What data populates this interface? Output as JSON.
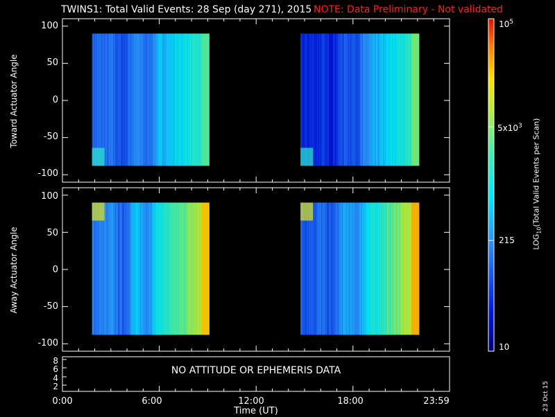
{
  "header": {
    "title": "TWINS1: Total Valid Events: 28 Sep (day 271), 2015",
    "note": "NOTE: Data Preliminary - Not validated",
    "note_color": "#ff2020"
  },
  "chart_data": [
    {
      "type": "heatmap",
      "panel": "top",
      "ylabel": "Toward Actuator Angle",
      "xlim": [
        "0:00",
        "23:59"
      ],
      "ylim": [
        -110,
        110
      ],
      "yticks": [
        "100",
        "50",
        "0",
        "-50",
        "-100"
      ],
      "data_ylim": [
        -88,
        90
      ],
      "blocks": [
        {
          "start": "1:50",
          "end": "9:05",
          "level": "blue-to-cyan, rising toward later times; green at the end"
        },
        {
          "start": "14:45",
          "end": "22:05",
          "level": "deep blue early, rising to cyan/green at the end"
        }
      ]
    },
    {
      "type": "heatmap",
      "panel": "middle",
      "ylabel": "Away Actuator Angle",
      "xlim": [
        "0:00",
        "23:59"
      ],
      "ylim": [
        -110,
        110
      ],
      "yticks": [
        "100",
        "50",
        "0",
        "-50",
        "-100"
      ],
      "data_ylim": [
        -88,
        90
      ],
      "blocks": [
        {
          "start": "1:50",
          "end": "9:05",
          "level": "blue-to-cyan, rising to yellow at the end"
        },
        {
          "start": "14:45",
          "end": "22:05",
          "level": "blue early, rising to yellow at the end"
        }
      ]
    }
  ],
  "attitude_panel": {
    "yticks": [
      "8",
      "6",
      "4",
      "2"
    ],
    "message": "NO ATTITUDE OR EPHEMERIS DATA"
  },
  "xaxis": {
    "xlabel": "Time (UT)",
    "ticks": [
      "0:00",
      "6:00",
      "12:00",
      "18:00",
      "23:59"
    ]
  },
  "colorbar": {
    "label": "LOG10(Total Valid Events per Scan)",
    "ticks": [
      {
        "value": 100000,
        "label": "10^5"
      },
      {
        "value": 5000,
        "label": "5x10^3"
      },
      {
        "value": 215,
        "label": "215"
      },
      {
        "value": 10,
        "label": "10"
      }
    ],
    "min": 10,
    "max": 100000
  },
  "datestamp": "23 Oct 15"
}
